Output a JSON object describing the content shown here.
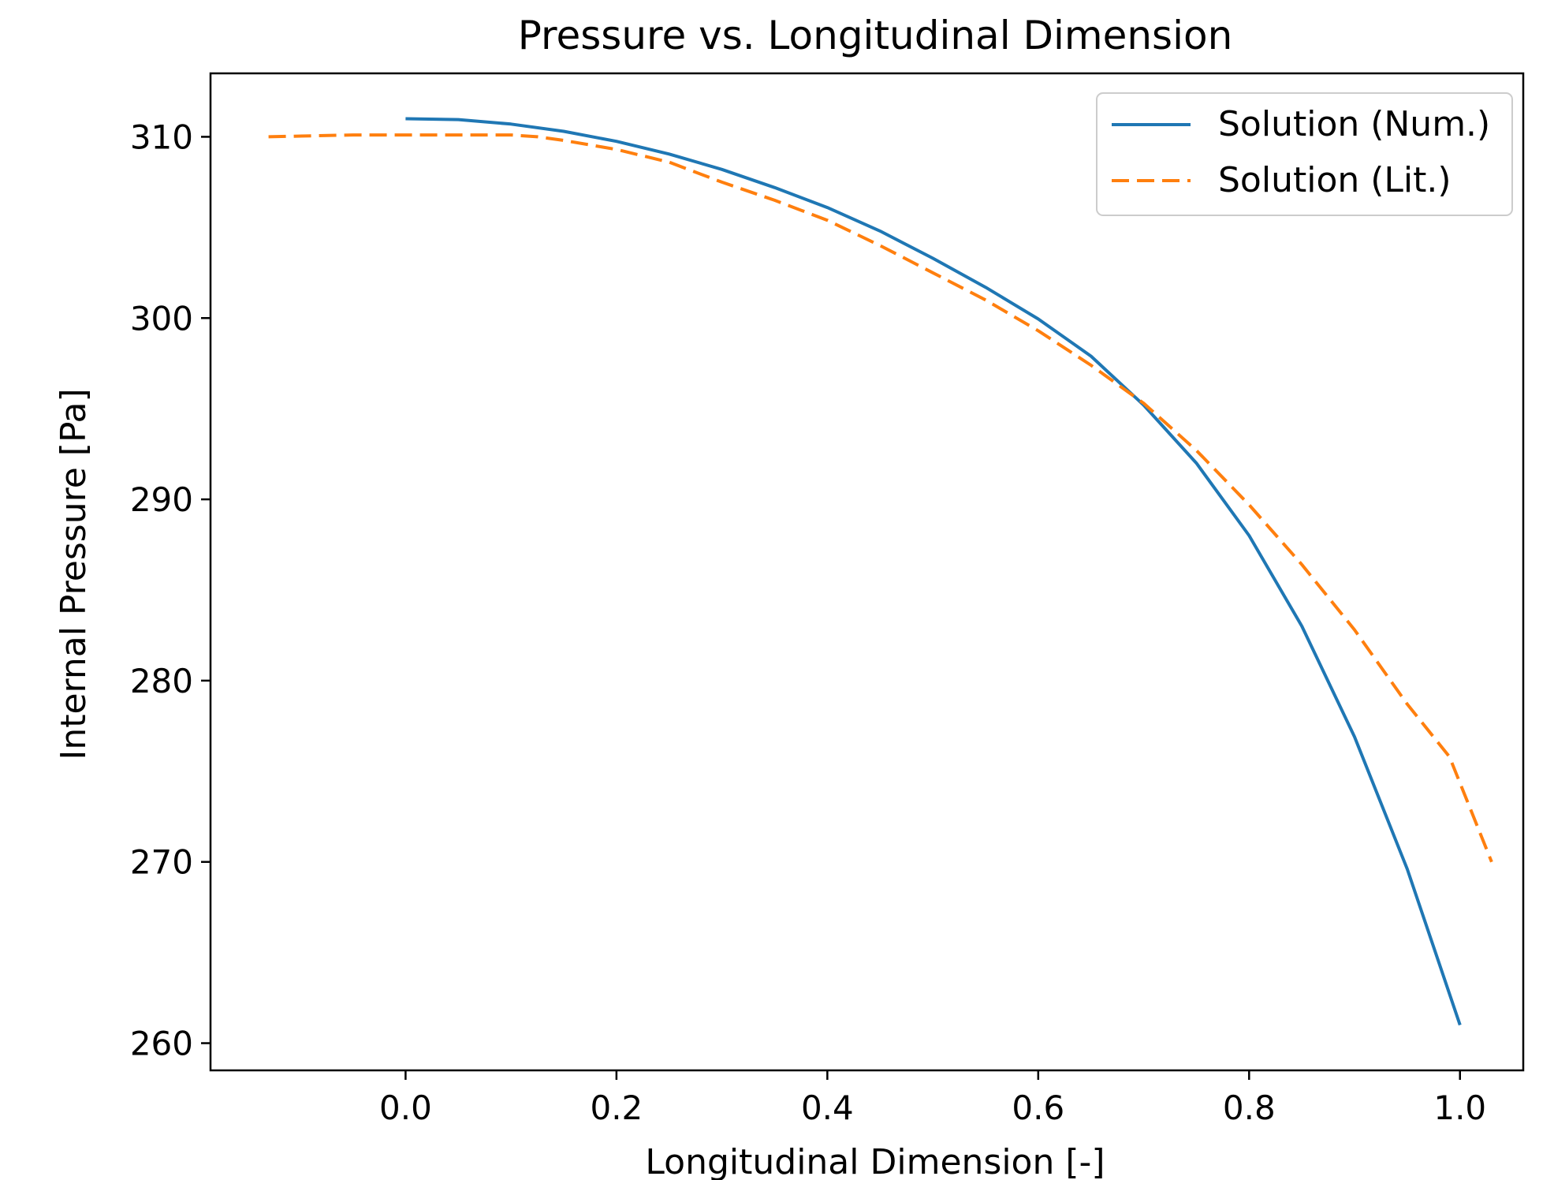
{
  "chart_data": {
    "type": "line",
    "title": "Pressure vs. Longitudinal Dimension",
    "xlabel": "Longitudinal Dimension [-]",
    "ylabel": "Internal Pressure [Pa]",
    "xlim": [
      -0.185,
      1.06
    ],
    "ylim": [
      258.5,
      313.5
    ],
    "x_ticks": [
      "0.0",
      "0.2",
      "0.4",
      "0.6",
      "0.8",
      "1.0"
    ],
    "x_tick_values": [
      0.0,
      0.2,
      0.4,
      0.6,
      0.8,
      1.0
    ],
    "y_ticks": [
      "260",
      "270",
      "280",
      "290",
      "300",
      "310"
    ],
    "y_tick_values": [
      260,
      270,
      280,
      290,
      300,
      310
    ],
    "grid": false,
    "legend_position": "top-right",
    "series": [
      {
        "name": "Solution (Num.)",
        "color": "#1f77b4",
        "style": "solid",
        "x": [
          0.0,
          0.05,
          0.1,
          0.15,
          0.2,
          0.25,
          0.3,
          0.35,
          0.4,
          0.45,
          0.5,
          0.55,
          0.6,
          0.65,
          0.7,
          0.75,
          0.8,
          0.85,
          0.9,
          0.95,
          1.0
        ],
        "y": [
          311.0,
          310.95,
          310.7,
          310.3,
          309.75,
          309.05,
          308.2,
          307.2,
          306.1,
          304.8,
          303.3,
          301.7,
          299.95,
          297.9,
          295.2,
          292.0,
          288.0,
          283.0,
          276.9,
          269.6,
          261.0
        ]
      },
      {
        "name": "Solution (Lit.)",
        "color": "#ff7f0e",
        "style": "dashed",
        "x": [
          -0.13,
          -0.05,
          0.0,
          0.05,
          0.1,
          0.125,
          0.15,
          0.2,
          0.25,
          0.3,
          0.35,
          0.4,
          0.45,
          0.5,
          0.55,
          0.6,
          0.65,
          0.7,
          0.75,
          0.8,
          0.85,
          0.9,
          0.95,
          0.99,
          1.03
        ],
        "y": [
          310.0,
          310.1,
          310.1,
          310.1,
          310.1,
          310.0,
          309.8,
          309.3,
          308.6,
          307.5,
          306.5,
          305.4,
          304.0,
          302.5,
          301.0,
          299.3,
          297.4,
          295.3,
          292.7,
          289.7,
          286.4,
          282.8,
          278.7,
          275.8,
          270.0
        ]
      }
    ]
  }
}
